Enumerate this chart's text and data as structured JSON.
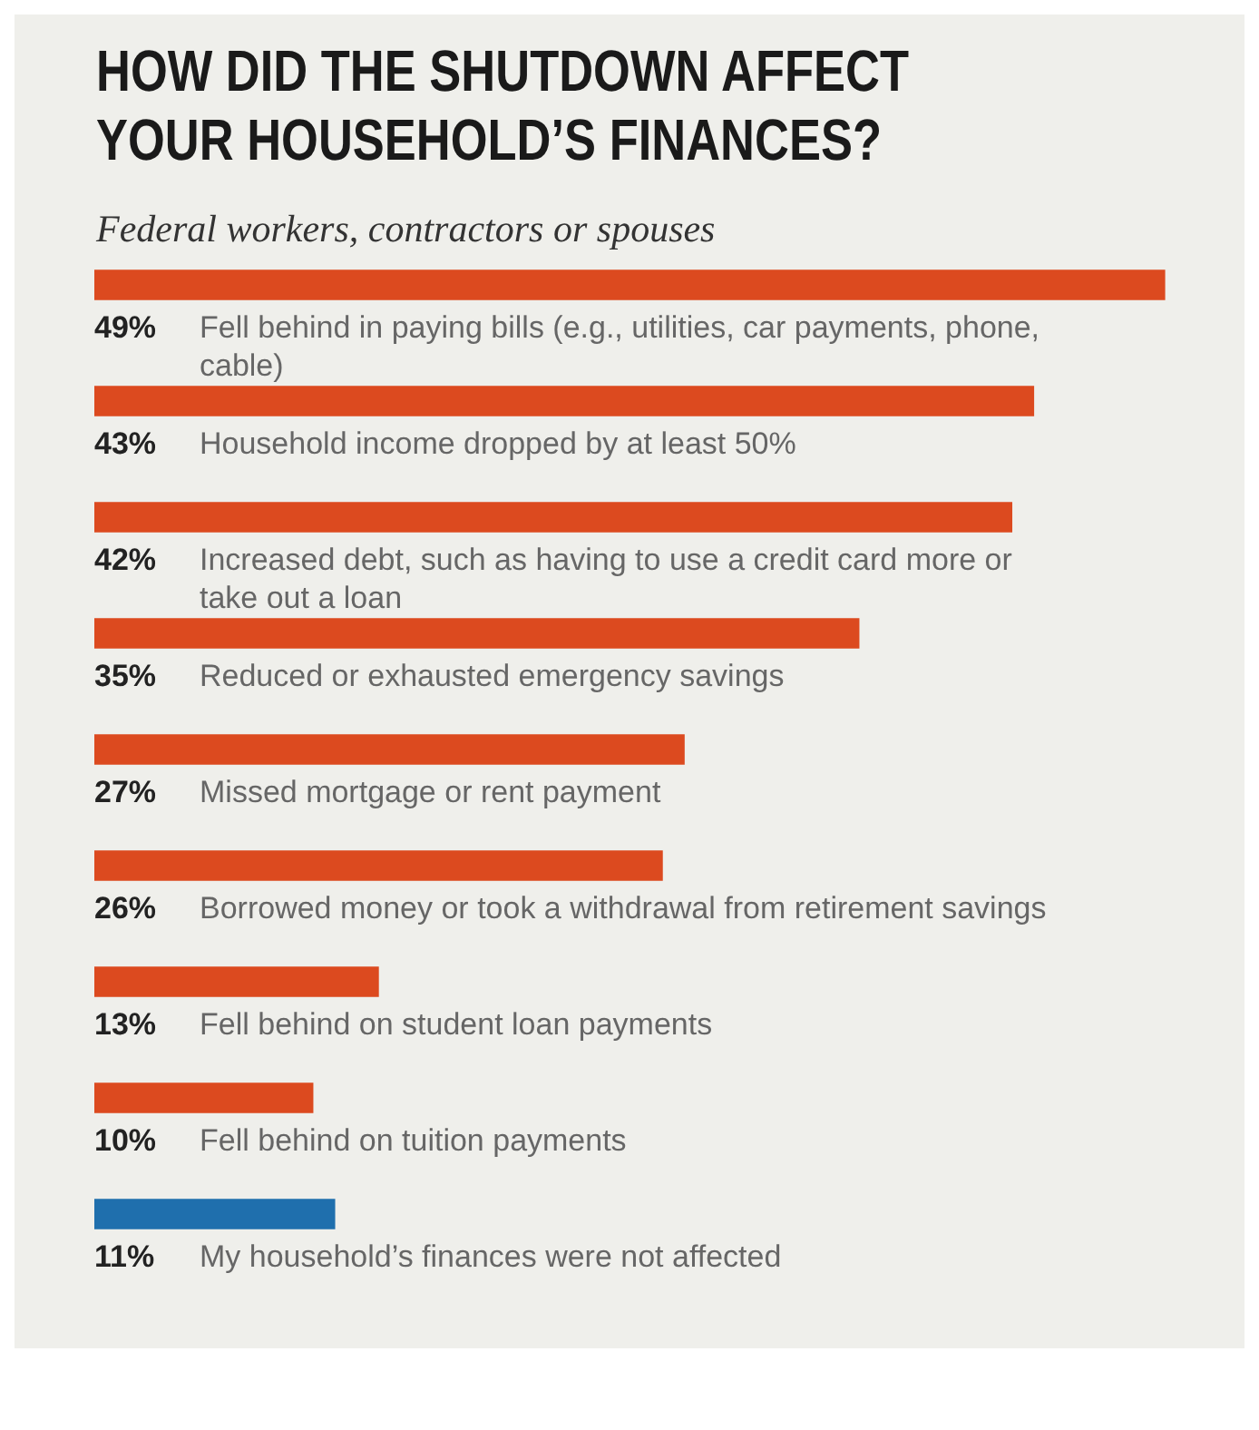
{
  "chart_data": {
    "type": "bar",
    "orientation": "horizontal",
    "title": "HOW DID THE SHUTDOWN AFFECT YOUR HOUSEHOLD’S FINANCES?",
    "subtitle": "Federal workers, contractors or spouses",
    "categories": [
      "Fell behind in paying bills (e.g., utilities, car payments, phone, cable)",
      "Household income dropped by at least 50%",
      "Increased debt, such as having to use a credit card more or take out a loan",
      "Reduced or exhausted emergency savings",
      "Missed mortgage or rent payment",
      "Borrowed money or took a withdrawal from retirement savings",
      "Fell behind on student loan payments",
      "Fell behind on tuition payments",
      "My household’s finances were not affected"
    ],
    "values": [
      49,
      43,
      42,
      35,
      27,
      26,
      13,
      10,
      11
    ],
    "value_labels": [
      "49%",
      "43%",
      "42%",
      "35%",
      "27%",
      "26%",
      "13%",
      "10%",
      "11%"
    ],
    "colors": [
      "#dc4a1f",
      "#dc4a1f",
      "#dc4a1f",
      "#dc4a1f",
      "#dc4a1f",
      "#dc4a1f",
      "#dc4a1f",
      "#dc4a1f",
      "#1f6fad"
    ],
    "tick_labels": false
  }
}
